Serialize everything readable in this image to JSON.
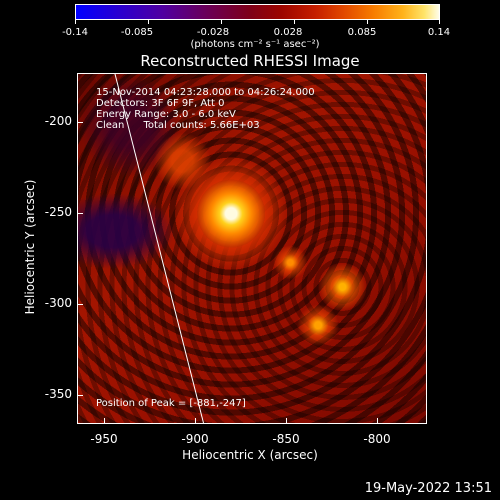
{
  "colorbar": {
    "tick_labels": [
      "-0.14",
      "-0.085",
      "-0.028",
      "0.028",
      "0.085",
      "0.14"
    ],
    "unit": "(photons cm⁻² s⁻¹ asec⁻²)",
    "range": [
      -0.14,
      0.14
    ]
  },
  "title": "Reconstructed RHESSI Image",
  "info": {
    "time_range": "15-Nov-2014 04:23:28.000 to 04:26:24.000",
    "detectors": "Detectors: 3F 6F 9F, Att 0",
    "energy": "Energy Range: 3.0 - 6.0 keV",
    "clean": "Clean      Total counts: 5.66E+03",
    "peak": "Position of Peak = [-881,-247]"
  },
  "axes": {
    "xlabel": "Heliocentric X (arcsec)",
    "ylabel": "Heliocentric Y (arcsec)",
    "x_ticks": [
      "-950",
      "-900",
      "-850",
      "-800"
    ],
    "y_ticks": [
      "-200",
      "-250",
      "-300",
      "-350"
    ],
    "x_range": [
      -967,
      -775
    ],
    "y_range": [
      -177,
      -370
    ]
  },
  "footer": {
    "timestamp": "19-May-2022 13:51"
  }
}
